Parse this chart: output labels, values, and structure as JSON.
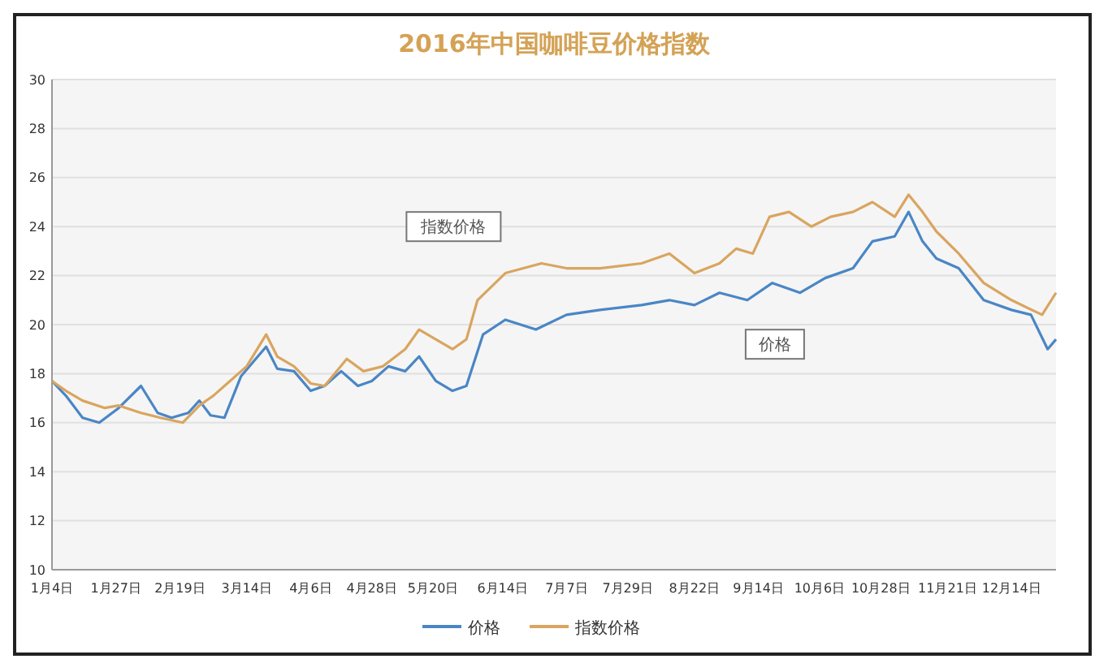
{
  "chart_data": {
    "type": "line",
    "title": "2016年中国咖啡豆价格指数",
    "xlim": [
      "2016-01-04",
      "2016-12-30"
    ],
    "xticks": [
      {
        "value": "2016-01-04",
        "label": "1月4日"
      },
      {
        "value": "2016-01-27",
        "label": "1月27日"
      },
      {
        "value": "2016-02-19",
        "label": "2月19日"
      },
      {
        "value": "2016-03-14",
        "label": "3月14日"
      },
      {
        "value": "2016-04-06",
        "label": "4月6日"
      },
      {
        "value": "2016-04-28",
        "label": "4月28日"
      },
      {
        "value": "2016-05-20",
        "label": "5月20日"
      },
      {
        "value": "2016-06-14",
        "label": "6月14日"
      },
      {
        "value": "2016-07-07",
        "label": "7月7日"
      },
      {
        "value": "2016-07-29",
        "label": "7月29日"
      },
      {
        "value": "2016-08-22",
        "label": "8月22日"
      },
      {
        "value": "2016-09-14",
        "label": "9月14日"
      },
      {
        "value": "2016-10-06",
        "label": "10月6日"
      },
      {
        "value": "2016-10-28",
        "label": "10月28日"
      },
      {
        "value": "2016-11-21",
        "label": "11月21日"
      },
      {
        "value": "2016-12-14",
        "label": "12月14日"
      }
    ],
    "ylim": [
      10,
      30
    ],
    "yticks": [
      10,
      12,
      14,
      16,
      18,
      20,
      22,
      24,
      26,
      28,
      30
    ],
    "grid": "y",
    "legend": "bottom",
    "marker": "none",
    "line_style": "solid",
    "series": [
      {
        "name": "价格",
        "color": "#4a86c5",
        "x": [
          "2016-01-04",
          "2016-01-09",
          "2016-01-15",
          "2016-01-21",
          "2016-01-28",
          "2016-02-05",
          "2016-02-11",
          "2016-02-16",
          "2016-02-22",
          "2016-02-26",
          "2016-03-01",
          "2016-03-06",
          "2016-03-12",
          "2016-03-18",
          "2016-03-21",
          "2016-03-25",
          "2016-03-31",
          "2016-04-06",
          "2016-04-11",
          "2016-04-17",
          "2016-04-23",
          "2016-04-28",
          "2016-05-04",
          "2016-05-10",
          "2016-05-15",
          "2016-05-21",
          "2016-05-27",
          "2016-06-01",
          "2016-06-07",
          "2016-06-15",
          "2016-06-26",
          "2016-07-07",
          "2016-07-19",
          "2016-08-03",
          "2016-08-13",
          "2016-08-22",
          "2016-08-31",
          "2016-09-10",
          "2016-09-19",
          "2016-09-29",
          "2016-10-08",
          "2016-10-18",
          "2016-10-25",
          "2016-11-02",
          "2016-11-07",
          "2016-11-12",
          "2016-11-17",
          "2016-11-25",
          "2016-12-04",
          "2016-12-14",
          "2016-12-21",
          "2016-12-27",
          "2016-12-30"
        ],
        "values": [
          17.7,
          17.1,
          16.2,
          16.0,
          16.6,
          17.5,
          16.4,
          16.2,
          16.4,
          16.9,
          16.3,
          16.2,
          17.9,
          18.7,
          19.1,
          18.2,
          18.1,
          17.3,
          17.5,
          18.1,
          17.5,
          17.7,
          18.3,
          18.1,
          18.7,
          17.7,
          17.3,
          17.5,
          19.6,
          20.2,
          19.8,
          20.4,
          20.6,
          20.8,
          21.0,
          20.8,
          21.3,
          21.0,
          21.7,
          21.3,
          21.9,
          22.3,
          23.4,
          23.6,
          24.6,
          23.4,
          22.7,
          22.3,
          21.0,
          20.6,
          20.4,
          19.0,
          19.4
        ]
      },
      {
        "name": "指数价格",
        "color": "#d9a560",
        "x": [
          "2016-01-04",
          "2016-01-09",
          "2016-01-15",
          "2016-01-23",
          "2016-01-28",
          "2016-02-05",
          "2016-02-12",
          "2016-02-20",
          "2016-02-26",
          "2016-03-02",
          "2016-03-08",
          "2016-03-14",
          "2016-03-21",
          "2016-03-25",
          "2016-03-31",
          "2016-04-06",
          "2016-04-11",
          "2016-04-19",
          "2016-04-25",
          "2016-05-02",
          "2016-05-10",
          "2016-05-15",
          "2016-05-21",
          "2016-05-27",
          "2016-06-01",
          "2016-06-05",
          "2016-06-15",
          "2016-06-28",
          "2016-07-07",
          "2016-07-19",
          "2016-08-03",
          "2016-08-13",
          "2016-08-22",
          "2016-08-31",
          "2016-09-06",
          "2016-09-12",
          "2016-09-18",
          "2016-09-25",
          "2016-10-03",
          "2016-10-10",
          "2016-10-18",
          "2016-10-25",
          "2016-11-02",
          "2016-11-07",
          "2016-11-12",
          "2016-11-17",
          "2016-11-25",
          "2016-12-04",
          "2016-12-14",
          "2016-12-25",
          "2016-12-30"
        ],
        "values": [
          17.7,
          17.3,
          16.9,
          16.6,
          16.7,
          16.4,
          16.2,
          16.0,
          16.7,
          17.1,
          17.7,
          18.3,
          19.6,
          18.7,
          18.3,
          17.6,
          17.5,
          18.6,
          18.1,
          18.3,
          19.0,
          19.8,
          19.4,
          19.0,
          19.4,
          21.0,
          22.1,
          22.5,
          22.3,
          22.3,
          22.5,
          22.9,
          22.1,
          22.5,
          23.1,
          22.9,
          24.4,
          24.6,
          24.0,
          24.4,
          24.6,
          25.0,
          24.4,
          25.3,
          24.6,
          23.8,
          22.9,
          21.7,
          21.0,
          20.4,
          21.3
        ]
      }
    ],
    "annotations": [
      "指数价格",
      "价格"
    ]
  }
}
